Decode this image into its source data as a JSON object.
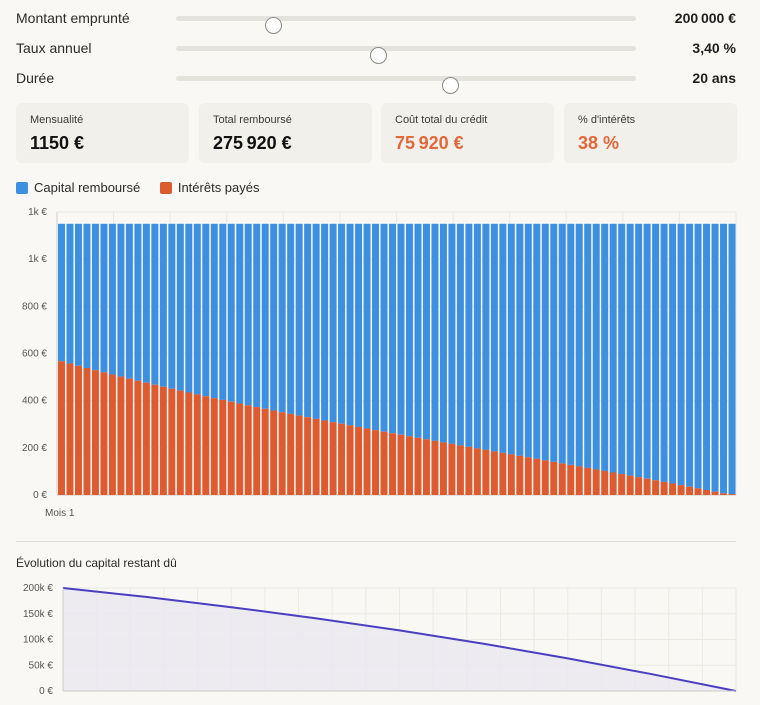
{
  "sliders": [
    {
      "label": "Montant emprunté",
      "value": "200 000 €",
      "fraction": 0.21
    },
    {
      "label": "Taux annuel",
      "value": "3,40 %",
      "fraction": 0.44
    },
    {
      "label": "Durée",
      "value": "20 ans",
      "fraction": 0.595
    }
  ],
  "cards": [
    {
      "title": "Mensualité",
      "value": "1150 €",
      "accent": false
    },
    {
      "title": "Total remboursé",
      "value": "275 920 €",
      "accent": false
    },
    {
      "title": "Coût total du crédit",
      "value": "75 920 €",
      "accent": true
    },
    {
      "title": "% d'intérêts",
      "value": "38 %",
      "accent": true
    }
  ],
  "legend": {
    "capital": "Capital remboursé",
    "interest": "Intérêts payés"
  },
  "colors": {
    "capital": "#3d8fe0",
    "interest": "#dd5b30",
    "accent": "#e0683a",
    "line": "#4a3fc2",
    "area": "#ebe8ef"
  },
  "chart_data": [
    {
      "type": "bar",
      "stacked": true,
      "title": "",
      "x_first_label": "Mois 1",
      "monthly_payment": 1150,
      "interest_start": 567,
      "bar_count": 80,
      "series": [
        {
          "name": "Capital remboursé",
          "color": "#3d8fe0"
        },
        {
          "name": "Intérêts payés",
          "color": "#dd5b30"
        }
      ],
      "yticks": [
        {
          "value": 0,
          "label": "0 €"
        },
        {
          "value": 200,
          "label": "200 €"
        },
        {
          "value": 400,
          "label": "400 €"
        },
        {
          "value": 600,
          "label": "600 €"
        },
        {
          "value": 800,
          "label": "800 €"
        },
        {
          "value": 1000,
          "label": "1k €"
        },
        {
          "value": 1200,
          "label": "1k €"
        }
      ],
      "ylim": [
        0,
        1200
      ]
    },
    {
      "type": "area",
      "title": "Évolution du capital restant dû",
      "x": [
        0,
        30,
        60,
        90,
        120,
        150,
        180,
        210,
        240
      ],
      "values": [
        200000,
        182500,
        162800,
        141300,
        117600,
        91800,
        63300,
        32600,
        0
      ],
      "yticks": [
        {
          "value": 0,
          "label": "0 €"
        },
        {
          "value": 50000,
          "label": "50k €"
        },
        {
          "value": 100000,
          "label": "100k €"
        },
        {
          "value": 150000,
          "label": "150k €"
        },
        {
          "value": 200000,
          "label": "200k €"
        }
      ],
      "ylim": [
        0,
        200000
      ]
    }
  ]
}
